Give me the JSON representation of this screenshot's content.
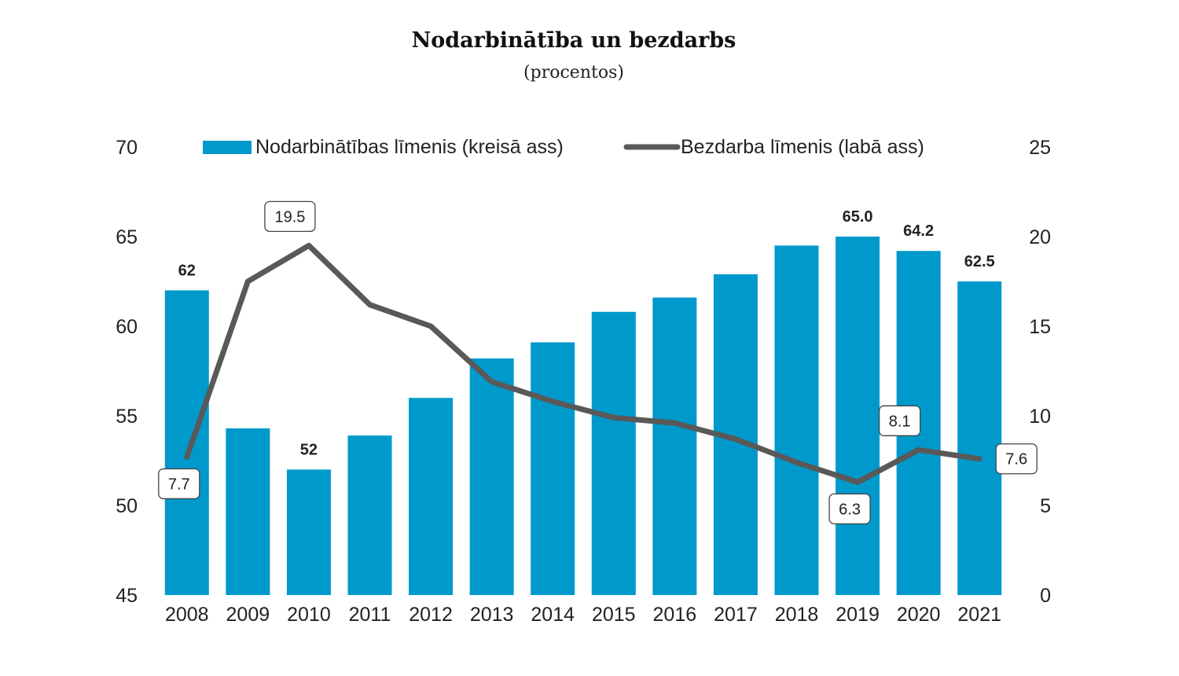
{
  "chart_data": {
    "type": "bar",
    "title": "Nodarbinātība un bezdarbs",
    "subtitle": "(procentos)",
    "categories": [
      "2008",
      "2009",
      "2010",
      "2011",
      "2012",
      "2013",
      "2014",
      "2015",
      "2016",
      "2017",
      "2018",
      "2019",
      "2020",
      "2021"
    ],
    "series": [
      {
        "name": "Nodarbinātības līmenis (kreisā ass)",
        "type": "bar",
        "axis": "left",
        "color": "#0099cc",
        "values": [
          62.0,
          54.3,
          52.0,
          53.9,
          56.0,
          58.2,
          59.1,
          60.8,
          61.6,
          62.9,
          64.5,
          65.0,
          64.2,
          62.5
        ]
      },
      {
        "name": "Bezdarba līmenis (labā ass)",
        "type": "line",
        "axis": "right",
        "color": "#595959",
        "values": [
          7.7,
          17.5,
          19.5,
          16.2,
          15.0,
          11.9,
          10.8,
          9.9,
          9.6,
          8.7,
          7.4,
          6.3,
          8.1,
          7.6
        ]
      }
    ],
    "bar_labels": [
      {
        "index": 0,
        "text": "62"
      },
      {
        "index": 2,
        "text": "52"
      },
      {
        "index": 11,
        "text": "65.0"
      },
      {
        "index": 12,
        "text": "64.2"
      },
      {
        "index": 13,
        "text": "62.5"
      }
    ],
    "line_labels": [
      {
        "index": 0,
        "text": "7.7",
        "position": "below"
      },
      {
        "index": 2,
        "text": "19.5",
        "position": "above-left"
      },
      {
        "index": 11,
        "text": "6.3",
        "position": "below"
      },
      {
        "index": 12,
        "text": "8.1",
        "position": "above-left"
      },
      {
        "index": 13,
        "text": "7.6",
        "position": "right"
      }
    ],
    "y_left": {
      "min": 45,
      "max": 70,
      "ticks": [
        "45",
        "50",
        "55",
        "60",
        "65",
        "70"
      ]
    },
    "y_right": {
      "min": 0,
      "max": 25,
      "ticks": [
        "0",
        "5",
        "10",
        "15",
        "20",
        "25"
      ]
    },
    "legend_position": "top",
    "grid": false
  }
}
